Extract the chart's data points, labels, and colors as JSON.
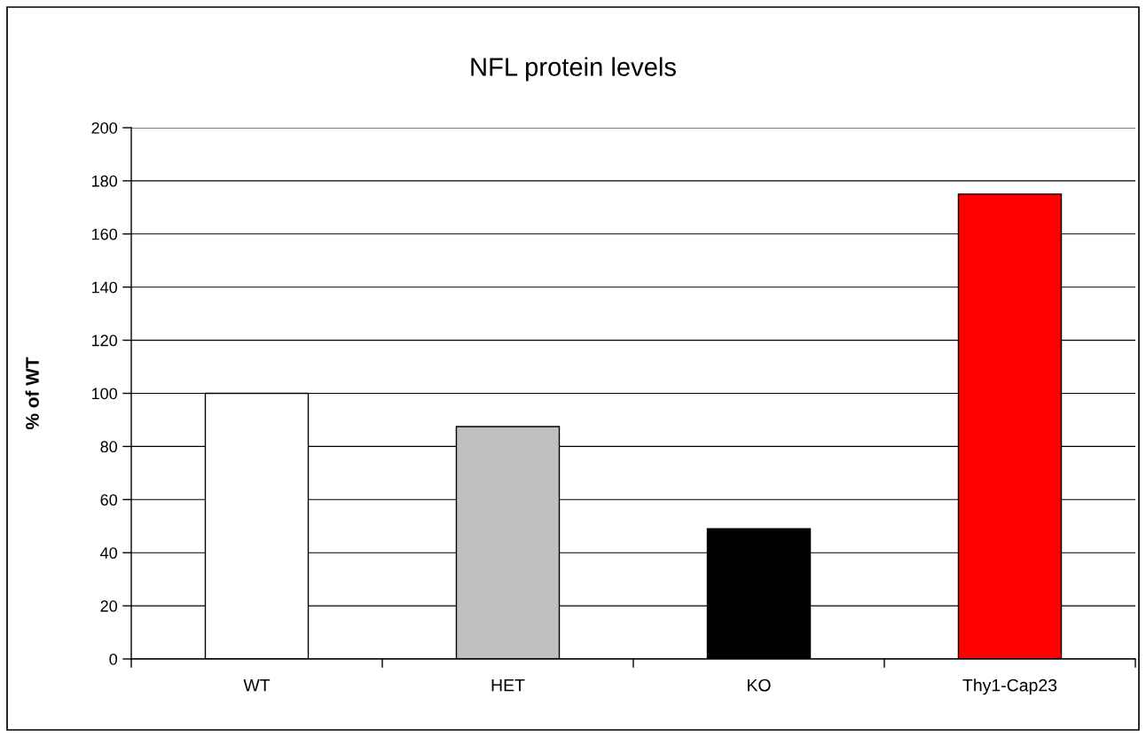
{
  "chart_data": {
    "type": "bar",
    "title": "NFL protein levels",
    "ylabel": "% of WT",
    "categories": [
      "WT",
      "HET",
      "KO",
      "Thy1-Cap23"
    ],
    "values": [
      100,
      87.5,
      49,
      175
    ],
    "colors": [
      "#ffffff",
      "#c0c0c0",
      "#000000",
      "#ff0000"
    ],
    "ylim": [
      0,
      200
    ],
    "yticks": [
      0,
      20,
      40,
      60,
      80,
      100,
      120,
      140,
      160,
      180,
      200
    ],
    "grid": "y"
  }
}
